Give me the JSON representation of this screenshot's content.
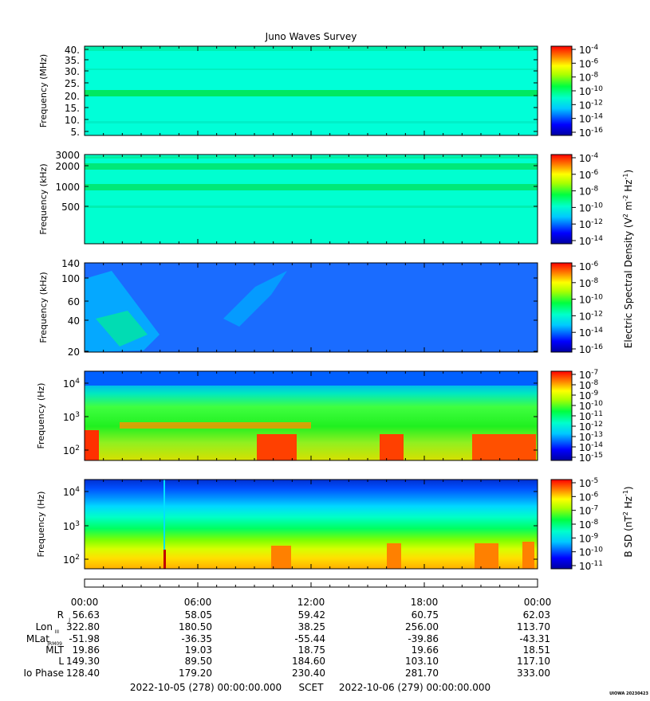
{
  "title": "Juno Waves Survey",
  "panels": [
    {
      "ylabel": "Frequency (MHz)",
      "yticks": [
        "40.",
        "35.",
        "30.",
        "25.",
        "20.",
        "15.",
        "10.",
        "5."
      ],
      "cbar_ticks": [
        "-4",
        "-6",
        "-8",
        "-10",
        "-12",
        "-14",
        "-16"
      ]
    },
    {
      "ylabel": "Frequency (kHz)",
      "yticks": [
        "3000",
        "2000",
        "1000",
        "500"
      ],
      "cbar_ticks": [
        "-4",
        "-6",
        "-8",
        "-10",
        "-12",
        "-14"
      ]
    },
    {
      "ylabel": "Frequency (kHz)",
      "yticks": [
        "140",
        "100",
        "60",
        "40",
        "20"
      ],
      "cbar_ticks": [
        "-6",
        "-8",
        "-10",
        "-12",
        "-14",
        "-16"
      ]
    },
    {
      "ylabel": "Frequency (Hz)",
      "yticks": [
        "4",
        "3",
        "2"
      ],
      "cbar_ticks": [
        "-7",
        "-8",
        "-9",
        "-10",
        "-11",
        "-12",
        "-13",
        "-14",
        "-15"
      ]
    },
    {
      "ylabel": "Frequency (Hz)",
      "yticks": [
        "4",
        "3",
        "2"
      ],
      "cbar_ticks": [
        "-5",
        "-6",
        "-7",
        "-8",
        "-9",
        "-10",
        "-11"
      ]
    }
  ],
  "cbar_label_E": "Electric Spectral Density (V",
  "cbar_label_B": "B SD (nT",
  "time_ticks": [
    "00:00",
    "06:00",
    "12:00",
    "18:00",
    "00:00"
  ],
  "ephemeris": [
    {
      "label": "R",
      "values": [
        "56.63",
        "58.05",
        "59.42",
        "60.75",
        "62.03"
      ]
    },
    {
      "label": "Lon",
      "values": [
        "322.80",
        "180.50",
        "38.25",
        "256.00",
        "113.70"
      ]
    },
    {
      "label": "MLat",
      "values": [
        "-51.98",
        "-36.35",
        "-55.44",
        "-39.86",
        "-43.31"
      ]
    },
    {
      "label": "MLT",
      "values": [
        "19.86",
        "19.03",
        "18.75",
        "19.66",
        "18.51"
      ]
    },
    {
      "label": "L",
      "values": [
        "149.30",
        "89.50",
        "184.60",
        "103.10",
        "117.10"
      ]
    },
    {
      "label": "Io Phase",
      "values": [
        "128.40",
        "179.20",
        "230.40",
        "281.70",
        "333.00"
      ]
    }
  ],
  "footer": {
    "start": "2022-10-05 (278) 00:00:00.000",
    "scet": "SCET",
    "end": "2022-10-06 (279) 00:00:00.000",
    "stamp": "UIOWA 20230423"
  },
  "chart_data": {
    "type": "heatmap",
    "title": "Juno Waves Survey",
    "x_range": [
      "2022-10-05 00:00",
      "2022-10-06 00:00"
    ],
    "panels": [
      {
        "ylabel": "Frequency (MHz)",
        "yrange": [
          3,
          41
        ],
        "colorbar_log10": [
          -17,
          -4
        ]
      },
      {
        "ylabel": "Frequency (kHz)",
        "yrange": [
          140,
          3000
        ],
        "yscale": "log",
        "colorbar_log10": [
          -15,
          -3
        ]
      },
      {
        "ylabel": "Frequency (kHz)",
        "yrange": [
          20,
          140
        ],
        "colorbar_log10": [
          -17,
          -6
        ]
      },
      {
        "ylabel": "Frequency (Hz)",
        "yrange": [
          50,
          20000
        ],
        "yscale": "log",
        "colorbar_log10": [
          -15,
          -7
        ]
      },
      {
        "ylabel": "Frequency (Hz)",
        "yrange": [
          50,
          20000
        ],
        "yscale": "log",
        "colorbar_log10": [
          -11,
          -4.5
        ]
      }
    ]
  }
}
